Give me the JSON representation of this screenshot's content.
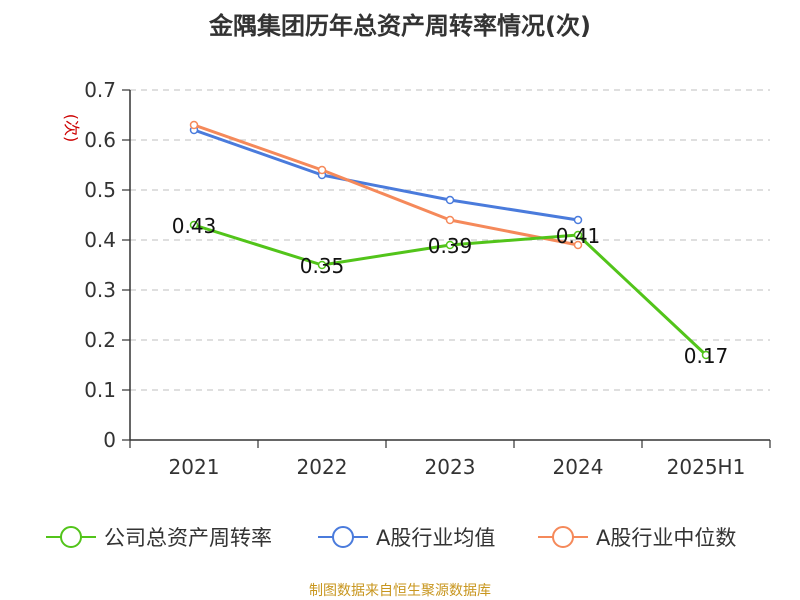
{
  "title": "金隅集团历年总资产周转率情况(次)",
  "source": "制图数据来自恒生聚源数据库",
  "chart_data": {
    "type": "line",
    "title": "金隅集团历年总资产周转率情况(次)",
    "categories": [
      "2021",
      "2022",
      "2023",
      "2024",
      "2025H1"
    ],
    "ylabel": "(次)",
    "ylim": [
      0,
      0.7
    ],
    "yticks": [
      0,
      0.1,
      0.2,
      0.3,
      0.4,
      0.5,
      0.6,
      0.7
    ],
    "ytick_labels": [
      "0",
      "0.1",
      "0.2",
      "0.3",
      "0.4",
      "0.5",
      "0.6",
      "0.7"
    ],
    "grid": true,
    "legend_position": "bottom",
    "series": [
      {
        "name": "公司总资产周转率",
        "color": "#52c41a",
        "values": [
          0.43,
          0.35,
          0.39,
          0.41,
          0.17
        ],
        "labels": [
          "0.43",
          "0.35",
          "0.39",
          "0.41",
          "0.17"
        ]
      },
      {
        "name": "A股行业均值",
        "color": "#4a7bdc",
        "values": [
          0.62,
          0.53,
          0.48,
          0.44,
          null
        ]
      },
      {
        "name": "A股行业中位数",
        "color": "#f5895a",
        "values": [
          0.63,
          0.54,
          0.44,
          0.39,
          null
        ]
      }
    ]
  },
  "colors": {
    "axis": "#333333",
    "grid": "#cccccc",
    "ylabel": "#cc0000",
    "source": "#c8961e"
  }
}
